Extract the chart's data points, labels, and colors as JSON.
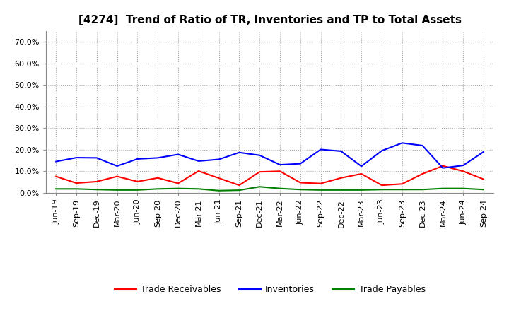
{
  "title": "[4274]  Trend of Ratio of TR, Inventories and TP to Total Assets",
  "x_labels": [
    "Jun-19",
    "Sep-19",
    "Dec-19",
    "Mar-20",
    "Jun-20",
    "Sep-20",
    "Dec-20",
    "Mar-21",
    "Jun-21",
    "Sep-21",
    "Dec-21",
    "Mar-22",
    "Jun-22",
    "Sep-22",
    "Dec-22",
    "Mar-23",
    "Jun-23",
    "Sep-23",
    "Dec-23",
    "Mar-24",
    "Jun-24",
    "Sep-24"
  ],
  "trade_receivables": [
    0.076,
    0.045,
    0.052,
    0.076,
    0.052,
    0.069,
    0.044,
    0.101,
    0.068,
    0.035,
    0.097,
    0.1,
    0.047,
    0.043,
    0.069,
    0.088,
    0.035,
    0.041,
    0.088,
    0.125,
    0.1,
    0.063
  ],
  "inventories": [
    0.145,
    0.163,
    0.162,
    0.124,
    0.157,
    0.162,
    0.178,
    0.147,
    0.155,
    0.187,
    0.174,
    0.13,
    0.135,
    0.201,
    0.193,
    0.123,
    0.195,
    0.231,
    0.219,
    0.115,
    0.127,
    0.19
  ],
  "trade_payables": [
    0.018,
    0.018,
    0.015,
    0.013,
    0.013,
    0.018,
    0.02,
    0.018,
    0.01,
    0.012,
    0.028,
    0.02,
    0.015,
    0.013,
    0.013,
    0.013,
    0.015,
    0.015,
    0.015,
    0.02,
    0.02,
    0.015
  ],
  "color_tr": "#FF0000",
  "color_inv": "#0000FF",
  "color_tp": "#008000",
  "ylim": [
    0.0,
    0.75
  ],
  "yticks": [
    0.0,
    0.1,
    0.2,
    0.3,
    0.4,
    0.5,
    0.6,
    0.7
  ],
  "ytick_labels": [
    "0.0%",
    "10.0%",
    "20.0%",
    "30.0%",
    "40.0%",
    "50.0%",
    "60.0%",
    "70.0%"
  ],
  "legend_tr": "Trade Receivables",
  "legend_inv": "Inventories",
  "legend_tp": "Trade Payables",
  "bg_color": "#FFFFFF",
  "plot_bg_color": "#FFFFFF",
  "linewidth": 1.5,
  "title_fontsize": 11,
  "tick_fontsize": 8,
  "legend_fontsize": 9
}
